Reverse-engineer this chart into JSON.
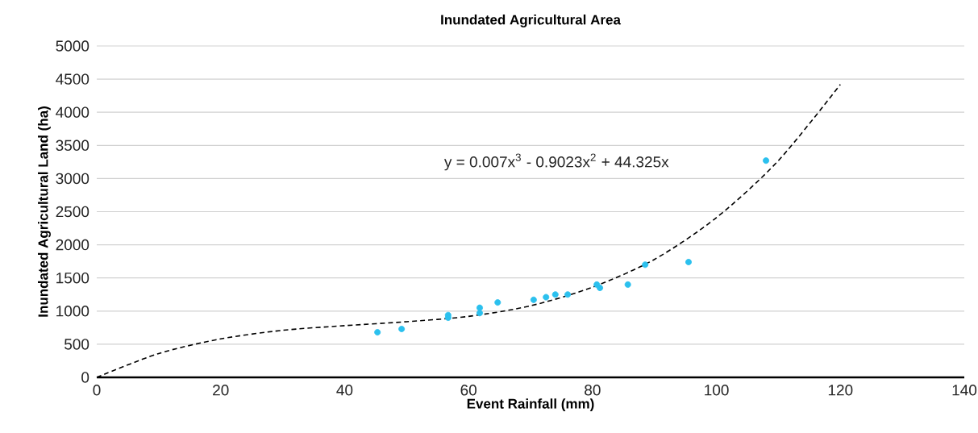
{
  "chart_data": {
    "type": "scatter",
    "title": "Inundated Agricultural Area",
    "xlabel": "Event Rainfall (mm)",
    "ylabel": "Inundated Agricultural Land (ha)",
    "x": [
      45.3,
      49.2,
      56.7,
      56.7,
      61.8,
      61.8,
      64.7,
      70.5,
      72.5,
      74.0,
      76.0,
      80.7,
      81.2,
      85.7,
      88.5,
      95.5,
      108.0
    ],
    "series": [
      {
        "color": "#2bc0ee",
        "marker": "circle",
        "values": [
          680,
          730,
          940,
          900,
          1050,
          970,
          1130,
          1170,
          1210,
          1250,
          1250,
          1400,
          1350,
          1400,
          1700,
          1740,
          3270
        ]
      },
      {
        "type": "line",
        "color": "#000000",
        "line_style": "dashed",
        "x": [
          0,
          10,
          20,
          30,
          40,
          50,
          60,
          70,
          80,
          90,
          100,
          110,
          120
        ],
        "values": [
          0,
          360,
          580,
          710,
          780,
          840,
          920,
          1080,
          1360,
          1780,
          2410,
          3270,
          4420
        ]
      }
    ],
    "annotations": [
      "y = 0.007x$^{3}$ - 0.9023x$^{2}$ + 44.325x"
    ],
    "xlim": [
      0,
      140
    ],
    "ylim": [
      0,
      5000
    ],
    "xticks": [
      0,
      20,
      40,
      60,
      80,
      100,
      120,
      140
    ],
    "yticks": [
      0,
      500,
      1000,
      1500,
      2000,
      2500,
      3000,
      3500,
      4000,
      4500,
      5000
    ],
    "grid": "y"
  }
}
